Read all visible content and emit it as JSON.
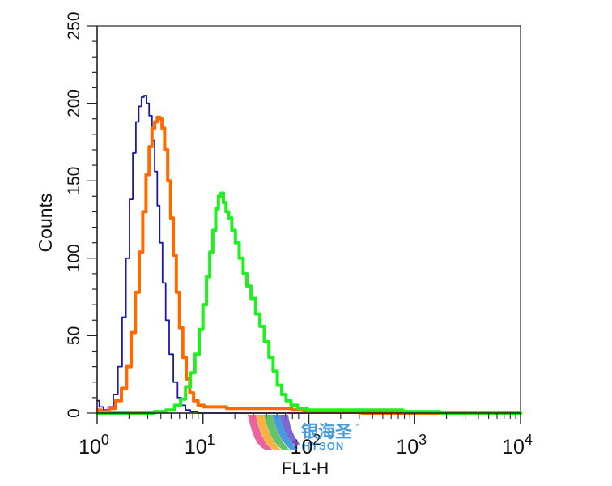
{
  "chart_data": {
    "type": "line",
    "title": "",
    "xlabel": "FL1-H",
    "ylabel": "Counts",
    "x_scale": "log",
    "xlim": [
      1,
      10000
    ],
    "ylim": [
      0,
      250
    ],
    "x_ticks": [
      {
        "value": 1,
        "base": "10",
        "exp": "0"
      },
      {
        "value": 10,
        "base": "10",
        "exp": "1"
      },
      {
        "value": 100,
        "base": "10",
        "exp": "2"
      },
      {
        "value": 1000,
        "base": "10",
        "exp": "3"
      },
      {
        "value": 10000,
        "base": "10",
        "exp": "4"
      }
    ],
    "y_ticks": [
      "0",
      "50",
      "100",
      "150",
      "200",
      "250"
    ],
    "grid": false,
    "legend": "none",
    "series": [
      {
        "color": "#1a1aaa",
        "stroke": "thin",
        "points": [
          [
            1,
            8
          ],
          [
            1.1,
            4
          ],
          [
            1.2,
            2
          ],
          [
            1.35,
            4
          ],
          [
            1.5,
            12
          ],
          [
            1.65,
            30
          ],
          [
            1.8,
            62
          ],
          [
            1.95,
            100
          ],
          [
            2.1,
            138
          ],
          [
            2.25,
            168
          ],
          [
            2.4,
            188
          ],
          [
            2.55,
            198
          ],
          [
            2.7,
            204
          ],
          [
            2.85,
            205
          ],
          [
            3.0,
            200
          ],
          [
            3.2,
            192
          ],
          [
            3.4,
            176
          ],
          [
            3.6,
            156
          ],
          [
            3.8,
            134
          ],
          [
            4.0,
            110
          ],
          [
            4.3,
            84
          ],
          [
            4.6,
            60
          ],
          [
            5.0,
            38
          ],
          [
            5.5,
            20
          ],
          [
            6.0,
            10
          ],
          [
            6.5,
            5
          ],
          [
            7.2,
            2
          ],
          [
            8,
            1
          ],
          [
            10,
            0
          ],
          [
            10000,
            0
          ]
        ]
      },
      {
        "color": "#ff6a00",
        "stroke": "thick",
        "points": [
          [
            1,
            2
          ],
          [
            1.2,
            1
          ],
          [
            1.4,
            3
          ],
          [
            1.6,
            8
          ],
          [
            1.8,
            16
          ],
          [
            2.0,
            30
          ],
          [
            2.2,
            52
          ],
          [
            2.4,
            78
          ],
          [
            2.6,
            104
          ],
          [
            2.8,
            130
          ],
          [
            3.0,
            154
          ],
          [
            3.2,
            172
          ],
          [
            3.4,
            184
          ],
          [
            3.6,
            188
          ],
          [
            3.8,
            191
          ],
          [
            4.0,
            190
          ],
          [
            4.2,
            184
          ],
          [
            4.5,
            170
          ],
          [
            4.8,
            150
          ],
          [
            5.1,
            126
          ],
          [
            5.4,
            102
          ],
          [
            5.8,
            78
          ],
          [
            6.2,
            55
          ],
          [
            6.7,
            36
          ],
          [
            7.2,
            22
          ],
          [
            7.8,
            13
          ],
          [
            8.5,
            8
          ],
          [
            9.5,
            5
          ],
          [
            11,
            4
          ],
          [
            14,
            4
          ],
          [
            20,
            3
          ],
          [
            40,
            3
          ],
          [
            60,
            3
          ],
          [
            80,
            2
          ],
          [
            100,
            1
          ],
          [
            200,
            1
          ],
          [
            500,
            0
          ],
          [
            10000,
            0
          ]
        ]
      },
      {
        "color": "#22ee22",
        "stroke": "thick",
        "points": [
          [
            1,
            0
          ],
          [
            2,
            0
          ],
          [
            3,
            0
          ],
          [
            4,
            1
          ],
          [
            5,
            2
          ],
          [
            5.8,
            5
          ],
          [
            6.5,
            9
          ],
          [
            7.2,
            17
          ],
          [
            8,
            26
          ],
          [
            8.8,
            38
          ],
          [
            9.6,
            54
          ],
          [
            10.4,
            70
          ],
          [
            11.2,
            88
          ],
          [
            12,
            104
          ],
          [
            12.8,
            118
          ],
          [
            13.6,
            132
          ],
          [
            14.4,
            140
          ],
          [
            15.2,
            142
          ],
          [
            16,
            136
          ],
          [
            17,
            130
          ],
          [
            18,
            126
          ],
          [
            19.5,
            118
          ],
          [
            21,
            110
          ],
          [
            23,
            100
          ],
          [
            25,
            90
          ],
          [
            27,
            82
          ],
          [
            30,
            74
          ],
          [
            33,
            64
          ],
          [
            36,
            56
          ],
          [
            40,
            46
          ],
          [
            44,
            36
          ],
          [
            48,
            27
          ],
          [
            53,
            18
          ],
          [
            58,
            12
          ],
          [
            64,
            8
          ],
          [
            72,
            5
          ],
          [
            85,
            3
          ],
          [
            110,
            2
          ],
          [
            160,
            2
          ],
          [
            300,
            2
          ],
          [
            600,
            2
          ],
          [
            1000,
            1
          ],
          [
            3000,
            0
          ],
          [
            10000,
            0
          ]
        ]
      }
    ]
  },
  "watermark": {
    "chinese_text": "银海圣",
    "latin_text": "HYSON",
    "tm": "™"
  }
}
